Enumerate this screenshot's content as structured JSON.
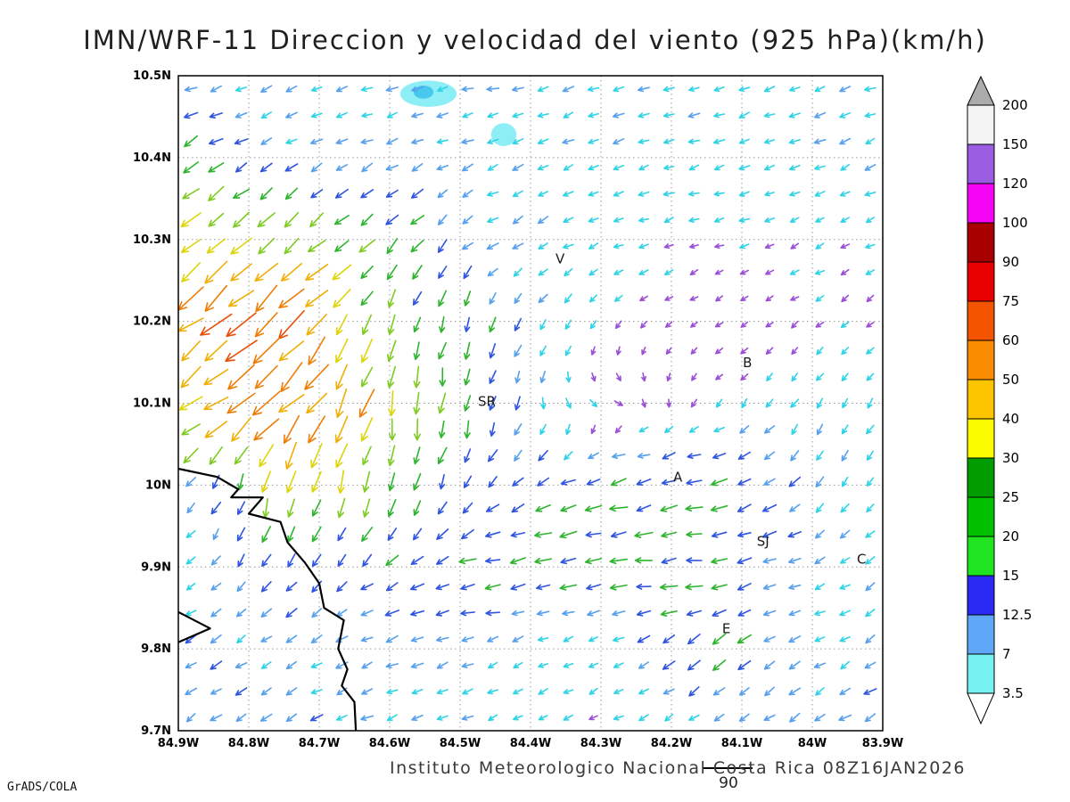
{
  "title": "IMN/WRF-11 Direccion y velocidad del viento (925 hPa)(km/h)",
  "footer": {
    "institute": "Instituto Meteorologico Nacional Costa Rica 08Z16JAN2026",
    "ref_label": "90",
    "credit": "GrADS/COLA"
  },
  "axes": {
    "lat_ticks": [
      "10.5N",
      "10.4N",
      "10.3N",
      "10.2N",
      "10.1N",
      "10N",
      "9.9N",
      "9.8N",
      "9.7N"
    ],
    "lon_ticks": [
      "84.9W",
      "84.8W",
      "84.7W",
      "84.6W",
      "84.5W",
      "84.4W",
      "84.3W",
      "84.2W",
      "84.1W",
      "84W",
      "83.9W"
    ],
    "lon_range": [
      -84.9,
      -83.9
    ],
    "lat_range": [
      9.7,
      10.5
    ],
    "grid_step": 0.1
  },
  "colorbar": {
    "labels": [
      "200",
      "150",
      "120",
      "100",
      "90",
      "75",
      "60",
      "50",
      "40",
      "30",
      "25",
      "20",
      "15",
      "12.5",
      "7",
      "3.5"
    ],
    "band_colors_top_to_bottom": [
      "#f4f4f4",
      "#9a5ce0",
      "#f604f6",
      "#a80000",
      "#e80000",
      "#f45400",
      "#f98c00",
      "#fdc500",
      "#fbfb00",
      "#009c00",
      "#00c000",
      "#1fe41f",
      "#2a2af4",
      "#5fa8f8",
      "#76f0f0"
    ],
    "over_color": "#ababab",
    "under_color": "#ffffff"
  },
  "stations": [
    {
      "label": "V",
      "lon": -84.358,
      "lat": 10.271
    },
    {
      "label": "B",
      "lon": -84.092,
      "lat": 10.144
    },
    {
      "label": "SR",
      "lon": -84.462,
      "lat": 10.097
    },
    {
      "label": "A",
      "lon": -84.191,
      "lat": 10.004
    },
    {
      "label": "SJ",
      "lon": -84.07,
      "lat": 9.926
    },
    {
      "label": "C",
      "lon": -83.93,
      "lat": 9.904
    },
    {
      "label": "E",
      "lon": -84.122,
      "lat": 9.819
    }
  ],
  "chart_data": {
    "type": "vector_field",
    "title": "Direccion y velocidad del viento",
    "level": "925 hPa",
    "units": "km/h",
    "valid_time": "08Z16JAN2026",
    "model": "IMN/WRF-11",
    "reference_speed": 90,
    "grid": {
      "lons": [
        -84.9,
        -84.75,
        -84.6,
        -84.45,
        -84.3,
        -84.15,
        -84.0,
        -83.9
      ],
      "lats": [
        10.5,
        10.4,
        10.3,
        10.2,
        10.1,
        10.0,
        9.9,
        9.8,
        9.7
      ],
      "uv": [
        [
          [
            -11,
            -3
          ],
          [
            -10,
            -4
          ],
          [
            -10,
            -3
          ],
          [
            -11,
            -3
          ],
          [
            -10,
            -3
          ],
          [
            -9,
            -3
          ],
          [
            -10,
            -4
          ],
          [
            -10,
            -3
          ]
        ],
        [
          [
            -20,
            -12
          ],
          [
            -12,
            -6
          ],
          [
            -10,
            -4
          ],
          [
            -10,
            -4
          ],
          [
            -9,
            -4
          ],
          [
            -9,
            -3
          ],
          [
            -9,
            -4
          ],
          [
            -9,
            -4
          ]
        ],
        [
          [
            -30,
            -25
          ],
          [
            -25,
            -20
          ],
          [
            -15,
            -18
          ],
          [
            -10,
            -6
          ],
          [
            -8,
            -3
          ],
          [
            -6,
            -2
          ],
          [
            -6,
            -3
          ],
          [
            -6,
            -3
          ]
        ],
        [
          [
            -45,
            -35
          ],
          [
            -50,
            -45
          ],
          [
            -5,
            -25
          ],
          [
            -8,
            -15
          ],
          [
            -4,
            -4
          ],
          [
            -3,
            -2
          ],
          [
            -4,
            -3
          ],
          [
            -4,
            -3
          ]
        ],
        [
          [
            -40,
            -28
          ],
          [
            -45,
            -40
          ],
          [
            -5,
            -45
          ],
          [
            -5,
            -18
          ],
          [
            6,
            -3
          ],
          [
            -4,
            -4
          ],
          [
            -5,
            -8
          ],
          [
            -5,
            -8
          ]
        ],
        [
          [
            -8,
            -5
          ],
          [
            -8,
            -35
          ],
          [
            -5,
            -25
          ],
          [
            -10,
            -10
          ],
          [
            -20,
            -5
          ],
          [
            -22,
            -5
          ],
          [
            -8,
            -12
          ],
          [
            -4,
            -6
          ]
        ],
        [
          [
            -6,
            -4
          ],
          [
            -10,
            -15
          ],
          [
            -15,
            -10
          ],
          [
            -22,
            -3
          ],
          [
            -24,
            -3
          ],
          [
            -22,
            -3
          ],
          [
            -10,
            -4
          ],
          [
            -8,
            -6
          ]
        ],
        [
          [
            -12,
            -8
          ],
          [
            -10,
            -6
          ],
          [
            -12,
            -4
          ],
          [
            -8,
            -3
          ],
          [
            -5,
            -3
          ],
          [
            -18,
            -12
          ],
          [
            -8,
            -5
          ],
          [
            -10,
            -6
          ]
        ],
        [
          [
            -10,
            -8
          ],
          [
            -12,
            -6
          ],
          [
            -10,
            -5
          ],
          [
            -8,
            -4
          ],
          [
            -6,
            -3
          ],
          [
            -8,
            -5
          ],
          [
            -12,
            -8
          ],
          [
            -14,
            -8
          ]
        ]
      ]
    },
    "display_grid": {
      "cols": 28,
      "rows": 25
    },
    "speed_color_stops": [
      {
        "max": 6,
        "color": "#9b4fd6"
      },
      {
        "max": 11,
        "color": "#2fd3e6"
      },
      {
        "max": 15,
        "color": "#56a0ee"
      },
      {
        "max": 20,
        "color": "#2f55e0"
      },
      {
        "max": 27,
        "color": "#2eb42e"
      },
      {
        "max": 35,
        "color": "#7ecb21"
      },
      {
        "max": 45,
        "color": "#ddd50a"
      },
      {
        "max": 55,
        "color": "#efaf06"
      },
      {
        "max": 68,
        "color": "#ef7d04"
      },
      {
        "max": 85,
        "color": "#ea4e08"
      },
      {
        "max": 9999,
        "color": "#e01515"
      }
    ],
    "shaded_areas": [
      {
        "lon": -84.545,
        "lat": 10.478,
        "rx": 0.04,
        "ry": 0.016,
        "color": "#8deef5"
      },
      {
        "lon": -84.552,
        "lat": 10.48,
        "rx": 0.014,
        "ry": 0.008,
        "color": "#49c8ee"
      },
      {
        "lon": -84.438,
        "lat": 10.428,
        "rx": 0.018,
        "ry": 0.014,
        "color": "#8deef5"
      }
    ],
    "coastline": [
      [
        -84.9,
        10.02
      ],
      [
        -84.845,
        10.01
      ],
      [
        -84.815,
        9.995
      ],
      [
        -84.825,
        9.985
      ],
      [
        -84.78,
        9.985
      ],
      [
        -84.8,
        9.965
      ],
      [
        -84.755,
        9.955
      ],
      [
        -84.745,
        9.93
      ],
      [
        -84.72,
        9.905
      ],
      [
        -84.7,
        9.88
      ],
      [
        -84.693,
        9.85
      ],
      [
        -84.665,
        9.835
      ],
      [
        -84.673,
        9.8
      ],
      [
        -84.66,
        9.775
      ],
      [
        -84.668,
        9.755
      ],
      [
        -84.65,
        9.735
      ],
      [
        -84.648,
        9.7
      ]
    ],
    "coast_spit": [
      [
        -84.9,
        9.845
      ],
      [
        -84.855,
        9.825
      ],
      [
        -84.9,
        9.808
      ]
    ]
  }
}
